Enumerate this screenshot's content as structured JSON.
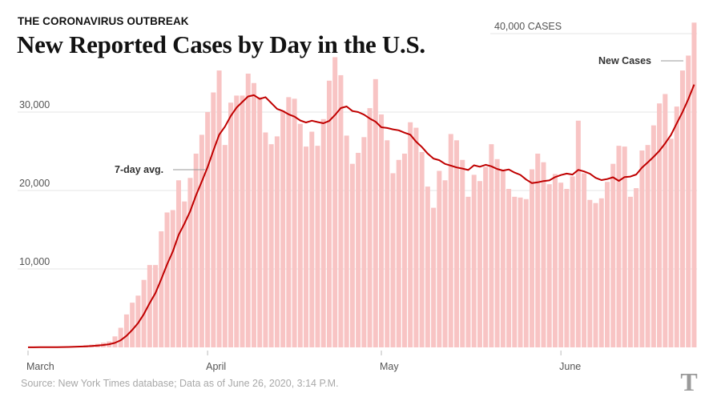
{
  "header": {
    "kicker": "THE CORONAVIRUS OUTBREAK",
    "title": "New Reported Cases by Day in the U.S."
  },
  "footer": {
    "source": "Source: New York Times database; Data as of June 26, 2020, 3:14 P.M.",
    "logo_text": "T"
  },
  "chart_data": {
    "type": "bar",
    "title": "New Reported Cases by Day in the U.S.",
    "xlabel": "",
    "ylabel": "CASES",
    "start_date": "2020-03-01",
    "ylim": [
      0,
      40000
    ],
    "grid": true,
    "y_ticks": [
      {
        "value": 10000,
        "label": "10,000"
      },
      {
        "value": 20000,
        "label": "20,000"
      },
      {
        "value": 30000,
        "label": "30,000"
      },
      {
        "value": 40000,
        "label": "40,000  CASES"
      }
    ],
    "x_ticks": [
      {
        "index": 0,
        "label": "March"
      },
      {
        "index": 31,
        "label": "April"
      },
      {
        "index": 61,
        "label": "May"
      },
      {
        "index": 92,
        "label": "June"
      }
    ],
    "annotations": {
      "avg_label": "7-day avg.",
      "bars_label": "New Cases"
    },
    "series": [
      {
        "name": "New Cases",
        "kind": "bar",
        "color": "#f8c4c4",
        "values": [
          10,
          15,
          25,
          30,
          50,
          60,
          90,
          110,
          150,
          200,
          280,
          350,
          450,
          600,
          750,
          1400,
          2500,
          4200,
          5700,
          6600,
          8600,
          10500,
          10500,
          14800,
          17200,
          17500,
          21300,
          18600,
          21600,
          24700,
          27100,
          30000,
          32500,
          35300,
          25800,
          31200,
          32100,
          32100,
          34900,
          33700,
          31900,
          27400,
          25900,
          26900,
          30200,
          31900,
          31700,
          28500,
          25600,
          27500,
          25700,
          29100,
          34000,
          37000,
          34700,
          27000,
          23400,
          24800,
          26800,
          30500,
          34200,
          29700,
          26400,
          22200,
          23900,
          24700,
          28700,
          28000,
          24900,
          20500,
          17800,
          22500,
          21300,
          27200,
          26400,
          23900,
          19200,
          22000,
          21200,
          23000,
          25900,
          24000,
          22500,
          20200,
          19200,
          19100,
          18900,
          22700,
          24700,
          23600,
          20800,
          22100,
          21000,
          20200,
          21800,
          28900,
          22200,
          18800,
          18400,
          19000,
          21100,
          23400,
          25700,
          25600,
          19200,
          20300,
          25100,
          25800,
          28300,
          31100,
          32300,
          26600,
          30700,
          35300,
          37200,
          41400
        ]
      },
      {
        "name": "7-day avg.",
        "kind": "line",
        "color": "#c00000",
        "rolling_window_days": 7
      }
    ]
  }
}
